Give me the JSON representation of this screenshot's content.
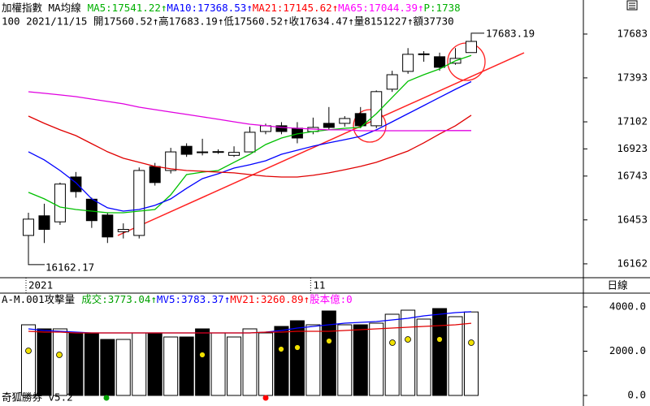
{
  "quote": "100 2021/11/15 開17560.52↑高17683.19↑低17560.52↑收17634.47↑量8151227↑額37730",
  "period": "日線",
  "footer": "奇狐勝券 v5.2",
  "chart_data": [
    {
      "type": "candlestick",
      "title": "加權指數 MA均線",
      "legend": [
        {
          "text": "MA5:17541.22↑",
          "color": "#00b000"
        },
        {
          "text": "MA10:17368.53↑",
          "color": "#0000ff"
        },
        {
          "text": "MA21:17145.62↑",
          "color": "#ff0000"
        },
        {
          "text": "MA65:17044.39↑",
          "color": "#ff00ff"
        },
        {
          "text": "P:1738",
          "color": "#00b000"
        }
      ],
      "categories": [
        "2021",
        null,
        null,
        null,
        null,
        null,
        null,
        null,
        null,
        null,
        null,
        null,
        null,
        null,
        null,
        null,
        null,
        null,
        "11",
        null,
        null,
        null,
        null,
        null,
        null,
        null,
        null,
        null,
        null
      ],
      "open": [
        16350,
        16480,
        16440,
        16737,
        16590,
        16485,
        16375,
        16350,
        16806,
        16780,
        16940,
        16903,
        16900,
        16880,
        16903,
        17038,
        17076,
        17060,
        17038,
        17092,
        17092,
        17157,
        17076,
        17318,
        17436,
        17549,
        17533,
        17490,
        17560.52
      ],
      "high": [
        16500,
        16560,
        16700,
        16770,
        16600,
        16500,
        16430,
        16800,
        16830,
        16930,
        16960,
        16990,
        16920,
        16940,
        17070,
        17090,
        17100,
        17100,
        17130,
        17200,
        17140,
        17200,
        17310,
        17440,
        17590,
        17570,
        17560,
        17590,
        17683.19
      ],
      "low": [
        16162.17,
        16300,
        16420,
        16600,
        16400,
        16300,
        16330,
        16330,
        16680,
        16760,
        16870,
        16880,
        16890,
        16870,
        16900,
        17020,
        17020,
        16960,
        17020,
        17050,
        17070,
        17060,
        17060,
        17300,
        17420,
        17500,
        17440,
        17480,
        17560.52
      ],
      "close": [
        16458,
        16390,
        16690,
        16640,
        16448,
        16340,
        16390,
        16780,
        16700,
        16903,
        16887,
        16900,
        16905,
        16900,
        17033,
        17076,
        17038,
        16995,
        17065,
        17065,
        17124,
        17076,
        17302,
        17414,
        17549,
        17552,
        17463,
        17522,
        17634.47
      ],
      "series": [
        {
          "color": "#00c000",
          "values": [
            16635,
            16592,
            16538,
            16522,
            16511,
            16500,
            16500,
            16511,
            16522,
            16619,
            16753,
            16769,
            16780,
            16834,
            16887,
            16952,
            16995,
            17022,
            17038,
            17049,
            17059,
            17065,
            17156,
            17264,
            17371,
            17414,
            17452,
            17506,
            17541.22
          ]
        },
        {
          "color": "#0000ff",
          "values": [
            16904,
            16850,
            16780,
            16699,
            16592,
            16533,
            16511,
            16522,
            16549,
            16592,
            16662,
            16726,
            16758,
            16796,
            16818,
            16844,
            16887,
            16914,
            16941,
            16963,
            16984,
            17006,
            17049,
            17102,
            17156,
            17210,
            17264,
            17317,
            17368.53
          ]
        },
        {
          "color": "#e00000",
          "values": [
            17140,
            17092,
            17049,
            17011,
            16957,
            16904,
            16861,
            16834,
            16807,
            16791,
            16780,
            16775,
            16769,
            16764,
            16753,
            16742,
            16737,
            16737,
            16748,
            16764,
            16785,
            16807,
            16834,
            16871,
            16909,
            16963,
            17022,
            17076,
            17145.62
          ]
        },
        {
          "color": "#e000e0",
          "values": [
            17301,
            17291,
            17280,
            17269,
            17253,
            17237,
            17221,
            17199,
            17183,
            17167,
            17151,
            17135,
            17119,
            17102,
            17086,
            17076,
            17065,
            17059,
            17054,
            17049,
            17049,
            17043,
            17043,
            17043,
            17043,
            17043,
            17044,
            17044,
            17044.39
          ]
        }
      ],
      "ylim": [
        16081,
        17801
      ],
      "yticks": [
        17683,
        17393,
        17102,
        16923,
        16743,
        16453,
        16162
      ]
    },
    {
      "type": "bar",
      "title": "A-M.001攻擊量",
      "legend": [
        {
          "text": "成交:3773.04↑",
          "color": "#00a000"
        },
        {
          "text": "MV5:3783.37↑",
          "color": "#0000ff"
        },
        {
          "text": "MV21:3260.89↑",
          "color": "#ff0000"
        },
        {
          "text": "股本億:0",
          "color": "#ff00ff"
        }
      ],
      "values": [
        3193,
        3009,
        3009,
        2826,
        2826,
        2532,
        2532,
        2826,
        2826,
        2642,
        2642,
        3009,
        2826,
        2642,
        3009,
        2826,
        3119,
        3376,
        3193,
        3817,
        3193,
        3193,
        3266,
        3670,
        3853,
        3450,
        3927,
        3560,
        3773.04
      ],
      "series": [
        {
          "color": "#0000ff",
          "values": [
            3009,
            2936,
            2899,
            2862,
            2826,
            2826,
            2826,
            2826,
            2826,
            2826,
            2826,
            2826,
            2826,
            2826,
            2826,
            2862,
            2936,
            3046,
            3119,
            3193,
            3266,
            3303,
            3340,
            3413,
            3486,
            3596,
            3670,
            3743,
            3783.37
          ]
        },
        {
          "color": "#e00000",
          "values": [
            2899,
            2862,
            2862,
            2826,
            2826,
            2826,
            2826,
            2826,
            2826,
            2826,
            2826,
            2826,
            2826,
            2826,
            2826,
            2862,
            2862,
            2899,
            2899,
            2899,
            2936,
            2972,
            3009,
            3046,
            3083,
            3119,
            3156,
            3193,
            3260.89
          ]
        }
      ],
      "ylim": [
        -367,
        4587
      ],
      "yticks": [
        {
          "value": 4000,
          "label": "4000.0"
        },
        {
          "value": 2000,
          "label": "2000.0"
        },
        {
          "value": 0,
          "label": "0.0"
        }
      ]
    }
  ]
}
